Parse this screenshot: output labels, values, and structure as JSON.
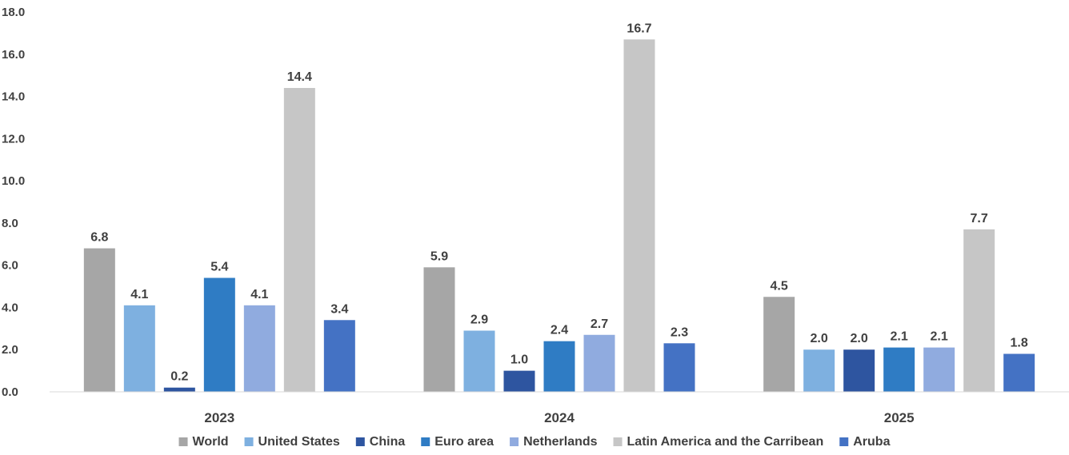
{
  "chart_data": {
    "type": "bar",
    "categories": [
      "2023",
      "2024",
      "2025"
    ],
    "ylim": [
      0,
      18
    ],
    "yticks": [
      "0.0",
      "2.0",
      "4.0",
      "6.0",
      "8.0",
      "10.0",
      "12.0",
      "14.0",
      "16.0",
      "18.0"
    ],
    "legend_position": "bottom",
    "grid": false,
    "series": [
      {
        "name": "World",
        "color": "#a6a6a6",
        "values": [
          6.8,
          5.9,
          4.5
        ],
        "labels": [
          "6.8",
          "5.9",
          "4.5"
        ]
      },
      {
        "name": "United States",
        "color": "#7eb0e0",
        "values": [
          4.1,
          2.9,
          2.0
        ],
        "labels": [
          "4.1",
          "2.9",
          "2.0"
        ]
      },
      {
        "name": "China",
        "color": "#2e55a0",
        "values": [
          0.2,
          1.0,
          2.0
        ],
        "labels": [
          "0.2",
          "1.0",
          "2.0"
        ]
      },
      {
        "name": "Euro area",
        "color": "#2f7cc4",
        "values": [
          5.4,
          2.4,
          2.1
        ],
        "labels": [
          "5.4",
          "2.4",
          "2.1"
        ]
      },
      {
        "name": "Netherlands",
        "color": "#90abdf",
        "values": [
          4.1,
          2.7,
          2.1
        ],
        "labels": [
          "4.1",
          "2.7",
          "2.1"
        ]
      },
      {
        "name": "Latin America and the Carribean",
        "color": "#c6c6c6",
        "values": [
          14.4,
          16.7,
          7.7
        ],
        "labels": [
          "14.4",
          "16.7",
          "7.7"
        ]
      },
      {
        "name": "Aruba",
        "color": "#4472c4",
        "values": [
          3.4,
          2.3,
          1.8
        ],
        "labels": [
          "3.4",
          "2.3",
          "1.8"
        ]
      }
    ]
  }
}
